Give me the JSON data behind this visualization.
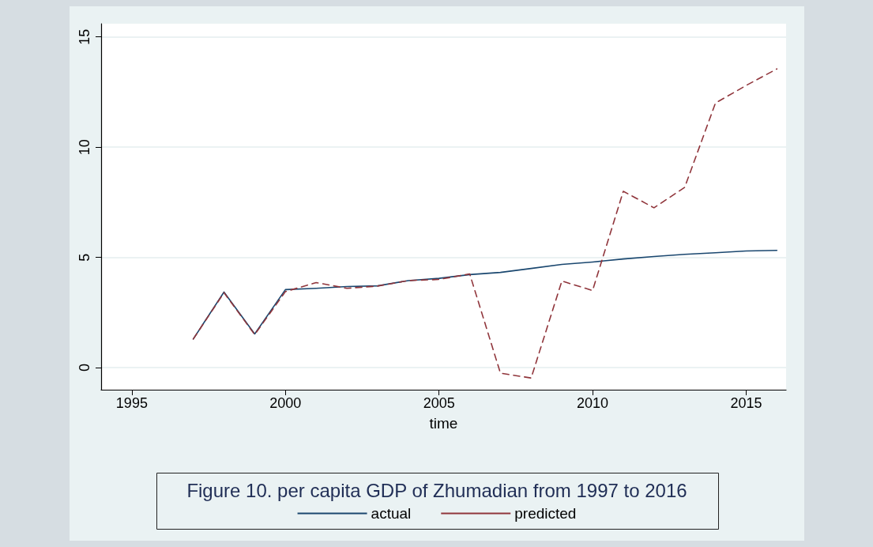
{
  "chart_data": {
    "type": "line",
    "title": "Figure 10. per capita GDP of Zhumadian from 1997 to 2016",
    "xlabel": "time",
    "x": [
      1997,
      1998,
      1999,
      2000,
      2001,
      2002,
      2003,
      2004,
      2005,
      2006,
      2007,
      2008,
      2009,
      2010,
      2011,
      2012,
      2013,
      2014,
      2015,
      2016
    ],
    "series": [
      {
        "name": "actual",
        "color": "#1a476f",
        "line_style": "solid",
        "values": [
          1.3,
          3.43,
          1.53,
          3.54,
          3.6,
          3.68,
          3.71,
          3.95,
          4.05,
          4.22,
          4.32,
          4.5,
          4.68,
          4.79,
          4.93,
          5.04,
          5.14,
          5.21,
          5.29,
          5.32
        ]
      },
      {
        "name": "predicted",
        "color": "#90353b",
        "line_style": "dashed",
        "values": [
          1.3,
          3.4,
          1.5,
          3.45,
          3.86,
          3.6,
          3.7,
          3.95,
          4.0,
          4.25,
          -0.25,
          -0.47,
          3.93,
          3.5,
          8.0,
          7.25,
          8.18,
          12.0,
          12.8,
          13.55
        ]
      }
    ],
    "xlim": [
      1994,
      2016.3
    ],
    "xticks": [
      1995,
      2000,
      2005,
      2010,
      2015
    ],
    "ylim": [
      -1,
      15.6
    ],
    "yticks": [
      0,
      5,
      10,
      15
    ],
    "grid": "y",
    "legend": "bottom",
    "marker": "none"
  }
}
